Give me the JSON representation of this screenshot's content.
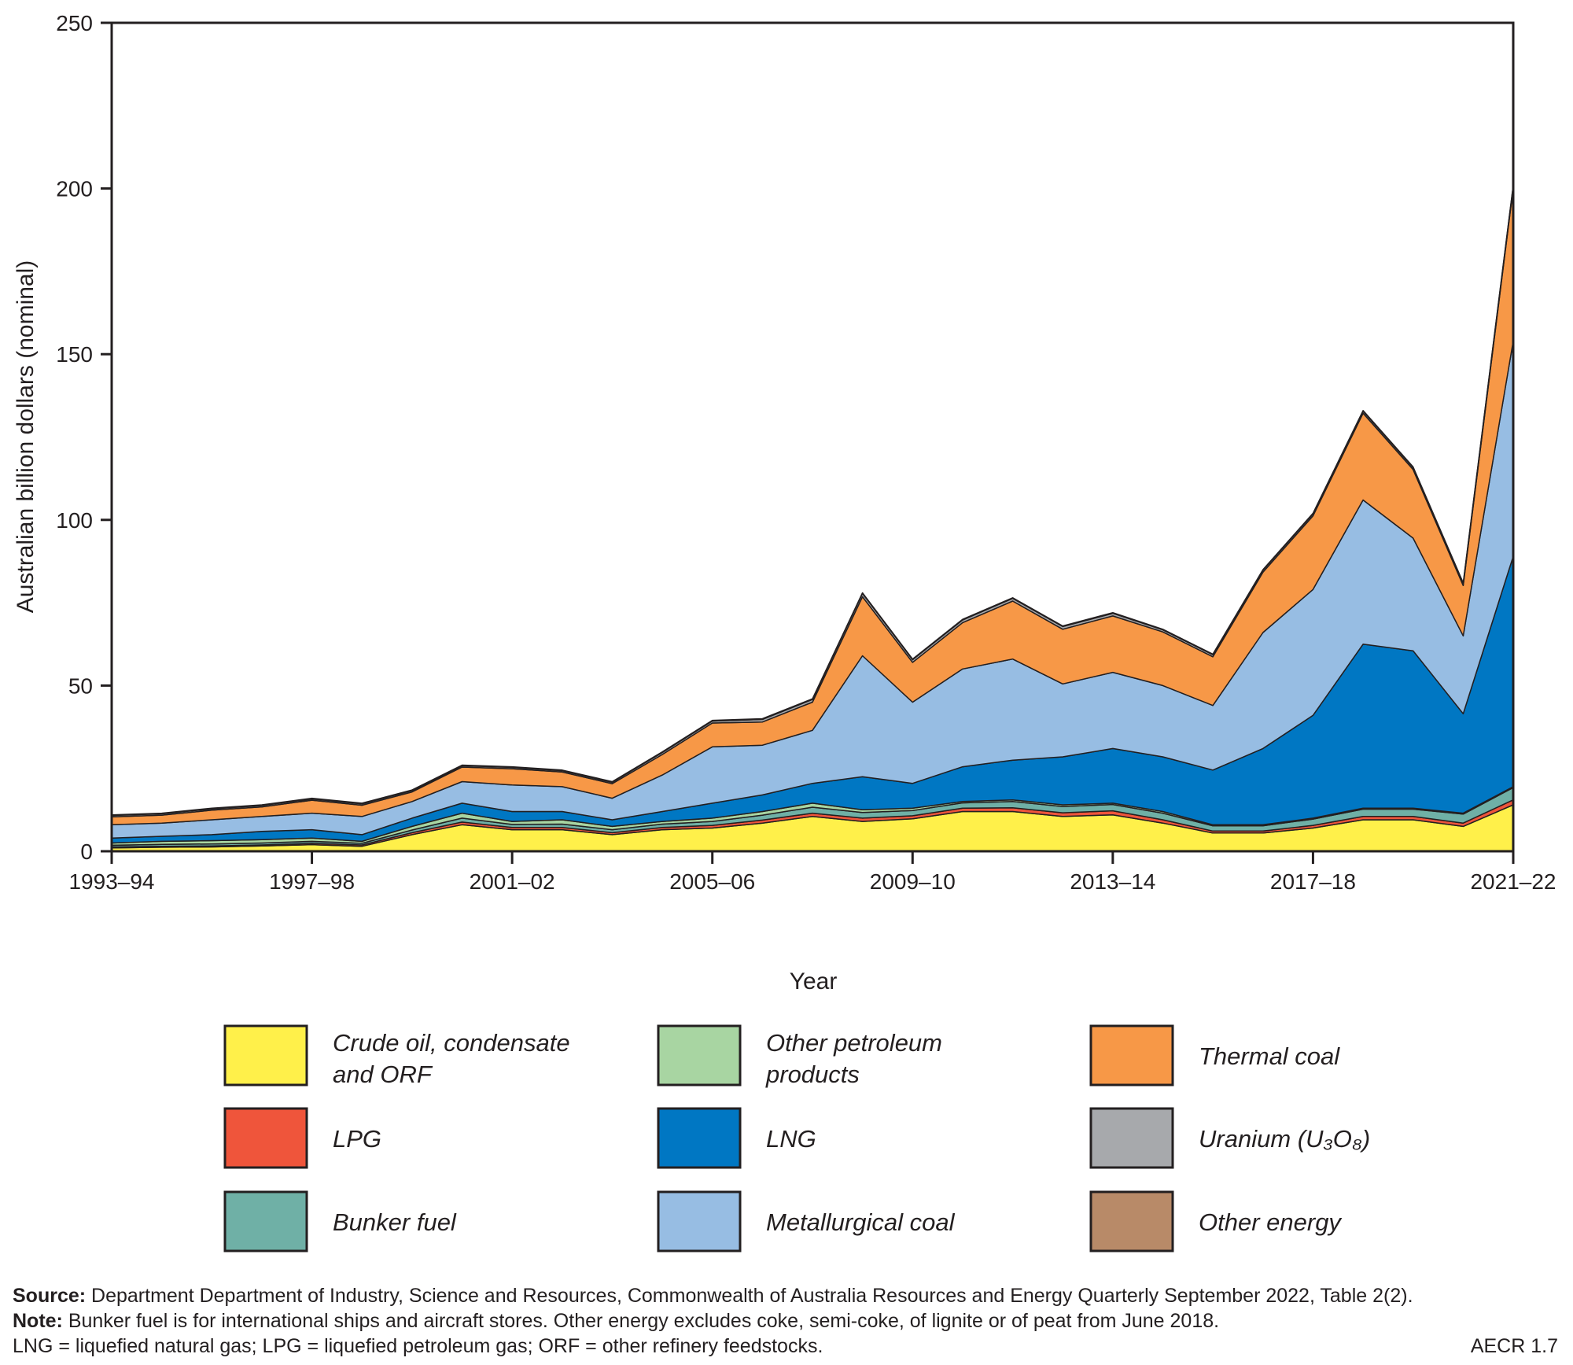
{
  "chart_data": {
    "type": "area",
    "stacked": true,
    "xlabel": "Year",
    "ylabel": "Australian billion dollars (nominal)",
    "ylim": [
      0,
      250
    ],
    "yticks": [
      0,
      50,
      100,
      150,
      200,
      250
    ],
    "xtick_labels": [
      "1993–94",
      "1997–98",
      "2001–02",
      "2005–06",
      "2009–10",
      "2013–14",
      "2017–18",
      "2021–22"
    ],
    "categories": [
      "1993–94",
      "1994–95",
      "1995–96",
      "1996–97",
      "1997–98",
      "1998–99",
      "1999–00",
      "2000–01",
      "2001–02",
      "2002–03",
      "2003–04",
      "2004–05",
      "2005–06",
      "2006–07",
      "2007–08",
      "2008–09",
      "2009–10",
      "2010–11",
      "2011–12",
      "2012–13",
      "2013–14",
      "2014–15",
      "2015–16",
      "2016–17",
      "2017–18",
      "2018–19",
      "2019–20",
      "2020–21",
      "2021–22"
    ],
    "grid": false,
    "legend_position": "bottom",
    "series": [
      {
        "name": "Crude oil, condensate and ORF",
        "color": "#fff04a",
        "values": [
          1,
          1.2,
          1.3,
          1.6,
          2,
          1.5,
          5,
          8,
          6.5,
          6.5,
          5,
          6.5,
          7,
          8.5,
          10.5,
          9,
          9.8,
          12,
          12,
          10.5,
          11,
          8.5,
          5.5,
          5.5,
          7,
          9.5,
          9.5,
          7.5,
          14
        ]
      },
      {
        "name": "LPG",
        "color": "#ef553b",
        "values": [
          0.3,
          0.3,
          0.3,
          0.3,
          0.4,
          0.4,
          0.6,
          0.8,
          0.7,
          0.7,
          0.6,
          0.7,
          0.8,
          0.9,
          1,
          1,
          0.9,
          1,
          1.1,
          1.1,
          1.2,
          1,
          0.6,
          0.6,
          0.8,
          1,
          1,
          1,
          1.5
        ]
      },
      {
        "name": "Bunker fuel",
        "color": "#6fb0a6",
        "values": [
          0.5,
          0.6,
          0.6,
          0.6,
          0.6,
          0.5,
          0.8,
          1.2,
          0.9,
          1,
          0.9,
          1,
          1.2,
          1.5,
          1.8,
          1.7,
          1.6,
          1.6,
          1.9,
          1.9,
          1.9,
          2,
          1.6,
          1.6,
          1.9,
          2.2,
          2.2,
          2.7,
          3.7
        ]
      },
      {
        "name": "Other petroleum products",
        "color": "#a8d5a2",
        "values": [
          0.7,
          0.9,
          1,
          1,
          1,
          0.6,
          1.1,
          1.5,
          0.9,
          1.3,
          1,
          0.8,
          1,
          1.1,
          1.2,
          0.8,
          0.7,
          0.4,
          0.5,
          0.5,
          0.4,
          0.5,
          0.3,
          0.3,
          0.3,
          0.3,
          0.3,
          0.3,
          0.3
        ]
      },
      {
        "name": "LNG",
        "color": "#0077c3",
        "values": [
          1.5,
          1.5,
          1.8,
          2.5,
          2.5,
          2,
          2.5,
          3,
          3,
          2.5,
          2,
          3,
          4.5,
          5,
          6,
          10,
          7.5,
          10.5,
          12,
          14.5,
          16.5,
          16.5,
          16.5,
          23,
          31,
          49.5,
          47.5,
          30,
          69.5
        ]
      },
      {
        "name": "Metallurgical coal",
        "color": "#97bde3",
        "values": [
          4,
          4,
          4.5,
          4.5,
          5,
          5.5,
          5,
          6.5,
          8,
          7.5,
          6.5,
          11,
          17,
          15,
          16,
          36.5,
          24.5,
          29.5,
          30.5,
          22,
          23,
          21.5,
          19.5,
          35,
          38,
          43.5,
          34,
          23.5,
          65
        ]
      },
      {
        "name": "Thermal coal",
        "color": "#f79847",
        "values": [
          2.4,
          2.4,
          2.9,
          2.9,
          3.9,
          3.4,
          2.9,
          4.4,
          4.9,
          4.4,
          4.4,
          6.2,
          7.2,
          7,
          8.5,
          17.8,
          12,
          14,
          17.5,
          16.5,
          17,
          16.2,
          14.7,
          18.2,
          22.2,
          26.2,
          20.7,
          15.2,
          46.2
        ]
      },
      {
        "name": "Uranium (U₃O₈)",
        "color": "#a7a9ac",
        "values": [
          0.4,
          0.4,
          0.4,
          0.4,
          0.4,
          0.4,
          0.4,
          0.4,
          0.4,
          0.4,
          0.4,
          0.6,
          0.6,
          0.8,
          0.8,
          1,
          0.8,
          0.8,
          0.8,
          0.8,
          0.8,
          0.6,
          0.6,
          0.6,
          0.6,
          0.6,
          0.6,
          0.6,
          0.6
        ]
      },
      {
        "name": "Other energy",
        "color": "#b88a68",
        "values": [
          0.2,
          0.2,
          0.2,
          0.2,
          0.2,
          0.2,
          0.2,
          0.2,
          0.2,
          0.2,
          0.2,
          0.2,
          0.2,
          0.2,
          0.2,
          0.2,
          0.2,
          0.2,
          0.2,
          0.2,
          0.2,
          0.2,
          0.2,
          0.2,
          0.2,
          0.2,
          0.2,
          0.2,
          0.2
        ]
      }
    ]
  },
  "legend": {
    "items": [
      {
        "line1": "Crude oil, condensate",
        "line2": "and ORF"
      },
      {
        "line1": "LPG",
        "line2": ""
      },
      {
        "line1": "Bunker fuel",
        "line2": ""
      },
      {
        "line1": "Other petroleum",
        "line2": "products"
      },
      {
        "line1": "LNG",
        "line2": ""
      },
      {
        "line1": "Metallurgical coal",
        "line2": ""
      },
      {
        "line1": "Thermal coal",
        "line2": ""
      },
      {
        "line1": "Uranium (U₃O₈)",
        "line2": ""
      },
      {
        "line1": "Other energy",
        "line2": ""
      }
    ]
  },
  "footer": {
    "source_label": "Source:",
    "source_text": " Department Department of Industry, Science and Resources, Commonwealth of Australia Resources and Energy Quarterly September 2022, Table 2(2).",
    "note_label": "Note:",
    "note_text": " Bunker fuel is for international ships and aircraft stores. Other energy excludes coke, semi-coke, of lignite or of peat from June 2018.",
    "abbrev": "LNG = liquefied natural gas; LPG = liquefied petroleum gas; ORF = other refinery feedstocks.",
    "figure_id": "AECR 1.7"
  }
}
